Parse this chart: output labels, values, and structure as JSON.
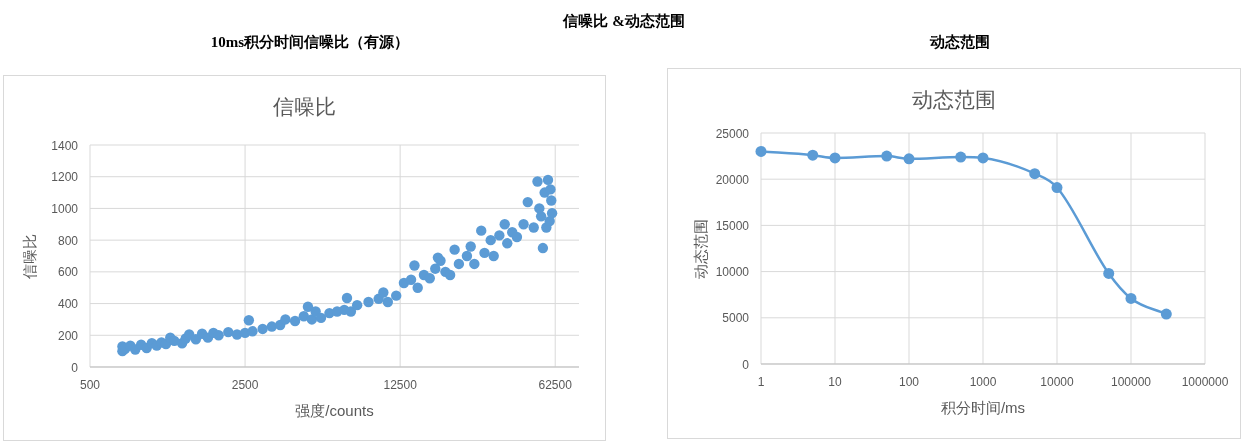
{
  "chart_data": [
    {
      "type": "scatter",
      "title": "10ms积分时间信噪比（有源）",
      "subtitle": "信噪比",
      "xlabel": "强度/counts",
      "ylabel": "信噪比",
      "annotations": [
        "信噪比 &动态范围"
      ],
      "log": "x",
      "grid": true,
      "marker": "circle",
      "xlim": [
        500,
        80000
      ],
      "xticks": [
        500,
        2500,
        12500,
        62500
      ],
      "ylim": [
        0,
        1400
      ],
      "yticks": [
        0,
        200,
        400,
        600,
        800,
        1000,
        1200,
        1400
      ],
      "x": [
        700,
        700,
        720,
        760,
        800,
        850,
        900,
        950,
        1000,
        1050,
        1100,
        1150,
        1200,
        1300,
        1350,
        1400,
        1500,
        1600,
        1700,
        1800,
        1900,
        2100,
        2300,
        2500,
        2600,
        2700,
        3000,
        3300,
        3600,
        3800,
        4200,
        4600,
        4800,
        5000,
        5200,
        5500,
        6000,
        6500,
        7000,
        7200,
        7500,
        8000,
        9000,
        10000,
        10500,
        11000,
        12000,
        13000,
        14000,
        14500,
        15000,
        16000,
        17000,
        18000,
        18500,
        19000,
        20000,
        21000,
        22000,
        23000,
        25000,
        26000,
        27000,
        29000,
        30000,
        32000,
        33000,
        35000,
        37000,
        38000,
        40000,
        42000,
        45000,
        47000,
        50000,
        52000,
        53000,
        54000,
        55000,
        56000,
        57000,
        58000,
        59000,
        60000,
        60500,
        59500
      ],
      "series": [
        {
          "color": "#5b9bd5",
          "values": [
            100,
            130,
            115,
            135,
            110,
            140,
            120,
            150,
            135,
            155,
            145,
            185,
            165,
            150,
            180,
            205,
            175,
            210,
            185,
            215,
            200,
            220,
            205,
            215,
            295,
            225,
            240,
            255,
            265,
            300,
            290,
            320,
            380,
            300,
            350,
            310,
            340,
            350,
            360,
            435,
            350,
            390,
            410,
            430,
            470,
            410,
            450,
            530,
            550,
            640,
            500,
            580,
            560,
            620,
            690,
            670,
            600,
            580,
            740,
            650,
            700,
            760,
            650,
            860,
            720,
            800,
            700,
            830,
            900,
            780,
            850,
            820,
            900,
            1040,
            880,
            1170,
            1000,
            950,
            750,
            1100,
            880,
            1180,
            920,
            1050,
            970,
            1120
          ]
        }
      ]
    },
    {
      "type": "line",
      "title": "动态范围",
      "subtitle": "动态范围",
      "xlabel": "积分时间/ms",
      "ylabel": "动态范围",
      "log": "x",
      "grid": true,
      "marker": "circle",
      "xlim": [
        1,
        1000000
      ],
      "xticks": [
        1,
        10,
        100,
        1000,
        10000,
        100000,
        1000000
      ],
      "ylim": [
        0,
        25000
      ],
      "yticks": [
        0,
        5000,
        10000,
        15000,
        20000,
        25000
      ],
      "x": [
        1,
        5,
        10,
        50,
        100,
        500,
        1000,
        5000,
        10000,
        50000,
        100000,
        300000
      ],
      "series": [
        {
          "color": "#5b9bd5",
          "values": [
            23000,
            22600,
            22300,
            22500,
            22200,
            22400,
            22300,
            20600,
            19100,
            9800,
            7100,
            5400
          ]
        }
      ]
    }
  ]
}
